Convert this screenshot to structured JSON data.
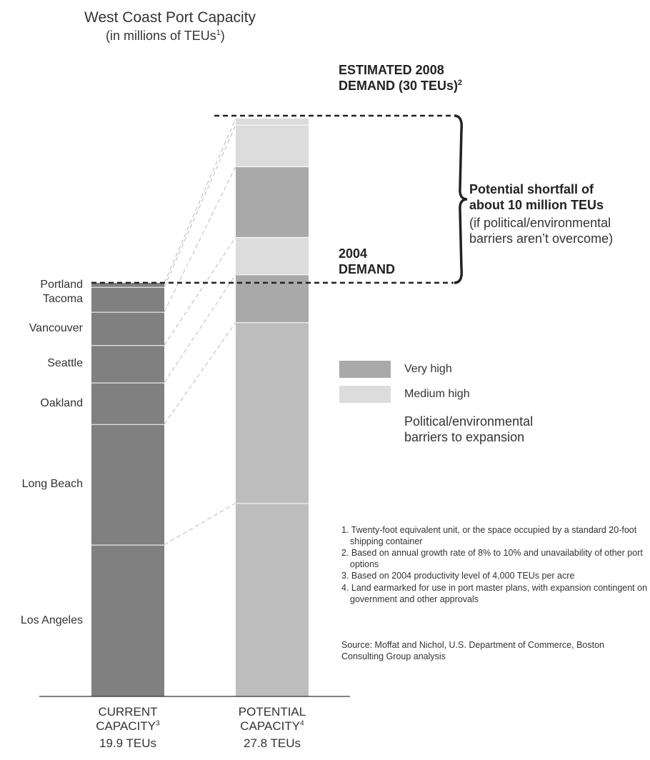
{
  "chart_data": {
    "type": "stacked-bar",
    "title": "West Coast Port Capacity",
    "subtitle": {
      "text": "(in millions of TEUs",
      "note": "1",
      "close": ")"
    },
    "categories": [
      "CURRENT\nCAPACITY",
      "POTENTIAL\nCAPACITY"
    ],
    "category_notes": [
      "3",
      "4"
    ],
    "total_labels": [
      "19.9 TEUs",
      "27.8 TEUs"
    ],
    "ylim": [
      0,
      30
    ],
    "series": [
      {
        "name": "Los Angeles",
        "colors": [
          "#808080",
          "#bdbdbd"
        ],
        "values": [
          7.3,
          9.3
        ]
      },
      {
        "name": "Long Beach",
        "colors": [
          "#808080",
          "#bdbdbd"
        ],
        "values": [
          5.8,
          8.7
        ]
      },
      {
        "name": "Oakland",
        "colors": [
          "#808080",
          "#a9a9a9"
        ],
        "values": [
          2.0,
          2.3
        ]
      },
      {
        "name": "Seattle",
        "colors": [
          "#808080",
          "#dcdcdc"
        ],
        "values": [
          1.8,
          1.8
        ]
      },
      {
        "name": "Vancouver",
        "colors": [
          "#808080",
          "#a9a9a9"
        ],
        "values": [
          1.6,
          3.4
        ]
      },
      {
        "name": "Tacoma",
        "colors": [
          "#808080",
          "#dcdcdc"
        ],
        "values": [
          1.2,
          2.0
        ]
      },
      {
        "name": "Portland",
        "colors": [
          "#808080",
          "#dcdcdc"
        ],
        "values": [
          0.2,
          0.3
        ]
      }
    ],
    "legend": [
      {
        "label": "Very high",
        "color": "#a9a9a9"
      },
      {
        "label": "Medium high",
        "color": "#dcdcdc"
      }
    ],
    "legend_title": "Political/environmental\nbarriers to expansion",
    "annotations": {
      "demand_2008": {
        "text": "ESTIMATED 2008\nDEMAND (30 TEUs)",
        "note": "2"
      },
      "demand_2004": "2004\nDEMAND",
      "shortfall": "Potential shortfall of\nabout 10 million TEUs",
      "shortfall_note": "(if political/environmental\nbarriers aren’t overcome)"
    },
    "footnotes": [
      "1. Twenty-foot equivalent unit, or the space occupied by a standard 20-foot shipping container",
      "2. Based on annual growth rate of 8% to 10% and unavailability of other port options",
      "3. Based on 2004 productivity level of 4,000 TEUs per acre",
      "4. Land earmarked for use in port master plans, with expansion contingent on government and other approvals"
    ],
    "source": "Source: Moffat and Nichol, U.S. Department of Commerce, Boston Consulting Group analysis"
  }
}
